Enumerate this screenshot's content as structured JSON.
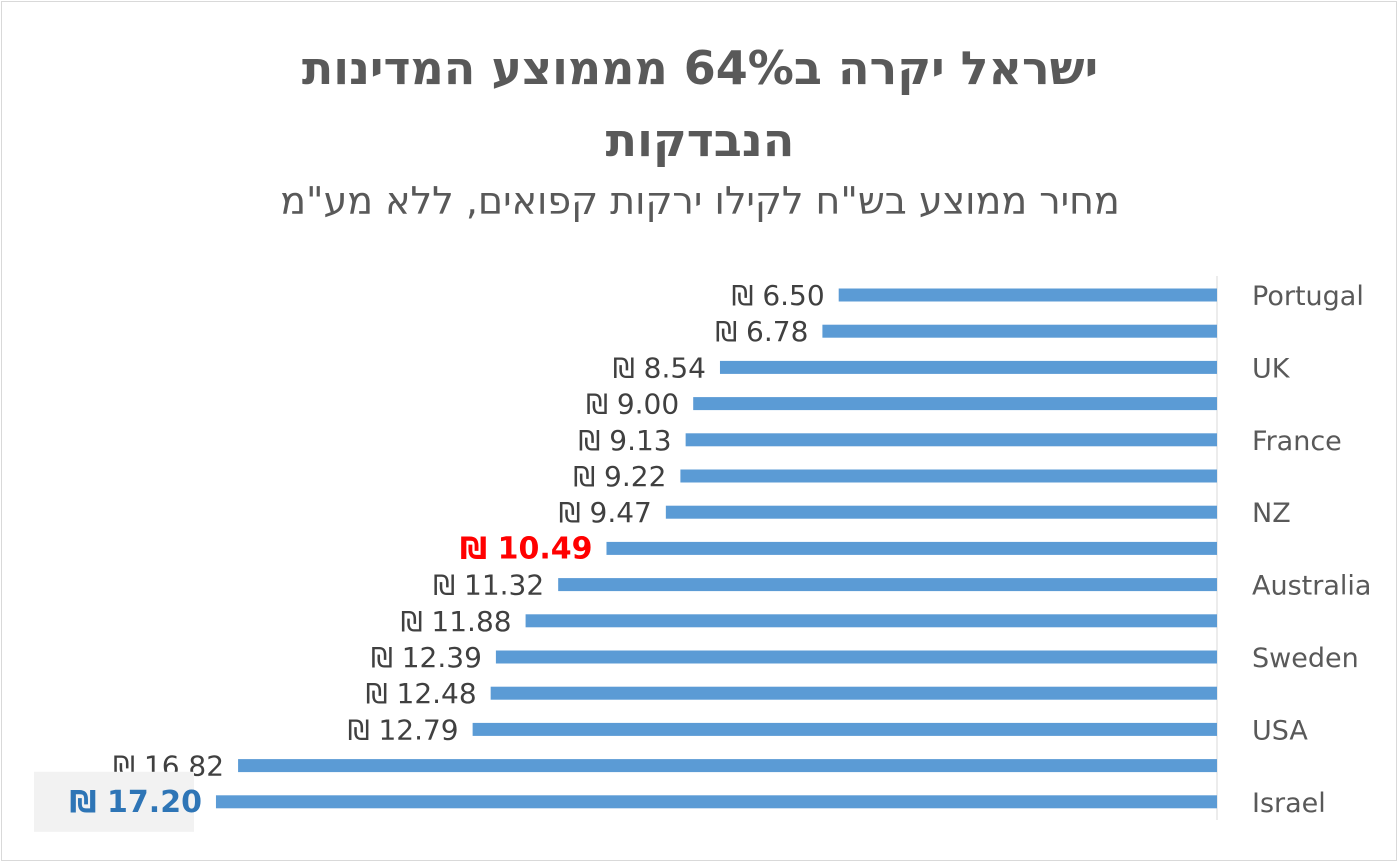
{
  "chart_data": {
    "type": "bar",
    "orientation": "horizontal",
    "title_lines": [
      "ישראל יקרה ב64% מממוצע המדינות",
      "הנבדקות"
    ],
    "subtitle": "מחיר ממוצע בש\"ח לקילו ירקות קפואים, ללא מע\"מ",
    "currency_symbol": "₪",
    "categories": [
      "Portugal",
      "",
      "UK",
      "",
      "France",
      "",
      "NZ",
      "",
      "Australia",
      "",
      "Sweden",
      "",
      "USA",
      "",
      "Israel"
    ],
    "values": [
      6.5,
      6.78,
      8.54,
      9.0,
      9.13,
      9.22,
      9.47,
      10.49,
      11.32,
      11.88,
      12.39,
      12.48,
      12.79,
      16.82,
      17.2
    ],
    "value_labels": [
      "6.50",
      "6.78",
      "8.54",
      "9.00",
      "9.13",
      "9.22",
      "9.47",
      "10.49",
      "11.32",
      "11.88",
      "12.39",
      "12.48",
      "12.79",
      "16.82",
      "17.20"
    ],
    "highlight": {
      "average_index": 7,
      "israel_index": 14
    },
    "colors": {
      "bar": "#5b9bd5",
      "average_label": "#ff0000",
      "israel_label": "#2e75b6",
      "label": "#404040",
      "category": "#595959"
    },
    "xlim": [
      0,
      17.5
    ],
    "x_axis_reversed": true,
    "grid": false,
    "legend": "none"
  }
}
